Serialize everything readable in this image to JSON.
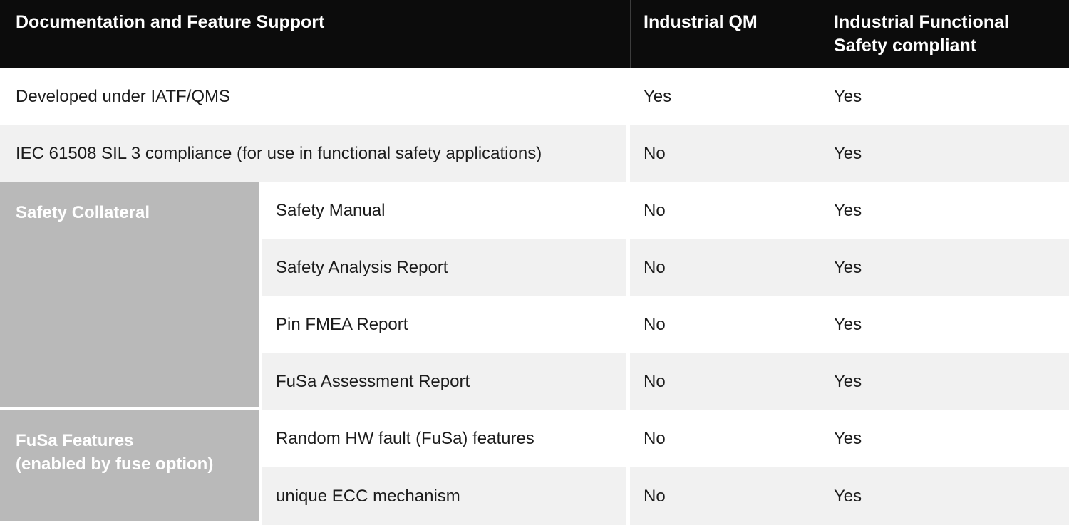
{
  "table": {
    "header": {
      "feature": "Documentation and Feature Support",
      "qm": "Industrial QM",
      "fusa": "Industrial Functional Safety compliant"
    },
    "top_rows": [
      {
        "feature": "Developed under IATF/QMS",
        "qm": "Yes",
        "fusa": "Yes"
      },
      {
        "feature": "IEC 61508 SIL 3 compliance (for use in functional safety applications)",
        "qm": "No",
        "fusa": "Yes"
      }
    ],
    "groups": [
      {
        "label": "Safety Collateral",
        "lines": [
          "Safety Collateral"
        ],
        "rows": [
          {
            "feature": "Safety Manual",
            "qm": "No",
            "fusa": "Yes"
          },
          {
            "feature": "Safety Analysis Report",
            "qm": "No",
            "fusa": "Yes"
          },
          {
            "feature": "Pin FMEA Report",
            "qm": "No",
            "fusa": "Yes"
          },
          {
            "feature": "FuSa Assessment Report",
            "qm": "No",
            "fusa": "Yes"
          }
        ]
      },
      {
        "label": "FuSa Features (enabled by fuse option)",
        "lines": [
          "FuSa Features",
          "(enabled by fuse option)"
        ],
        "rows": [
          {
            "feature": "Random HW fault (FuSa) features",
            "qm": "No",
            "fusa": "Yes"
          },
          {
            "feature": "unique ECC mechanism",
            "qm": "No",
            "fusa": "Yes"
          }
        ]
      }
    ],
    "colors": {
      "header_bg": "#0c0c0c",
      "header_text": "#ffffff",
      "header_divider": "#3d3d3d",
      "row_alt_bg": "#f1f1f1",
      "group_sidebar_bg": "#b9b9b9",
      "group_sidebar_text": "#ffffff",
      "body_text": "#1c1c1c"
    }
  }
}
